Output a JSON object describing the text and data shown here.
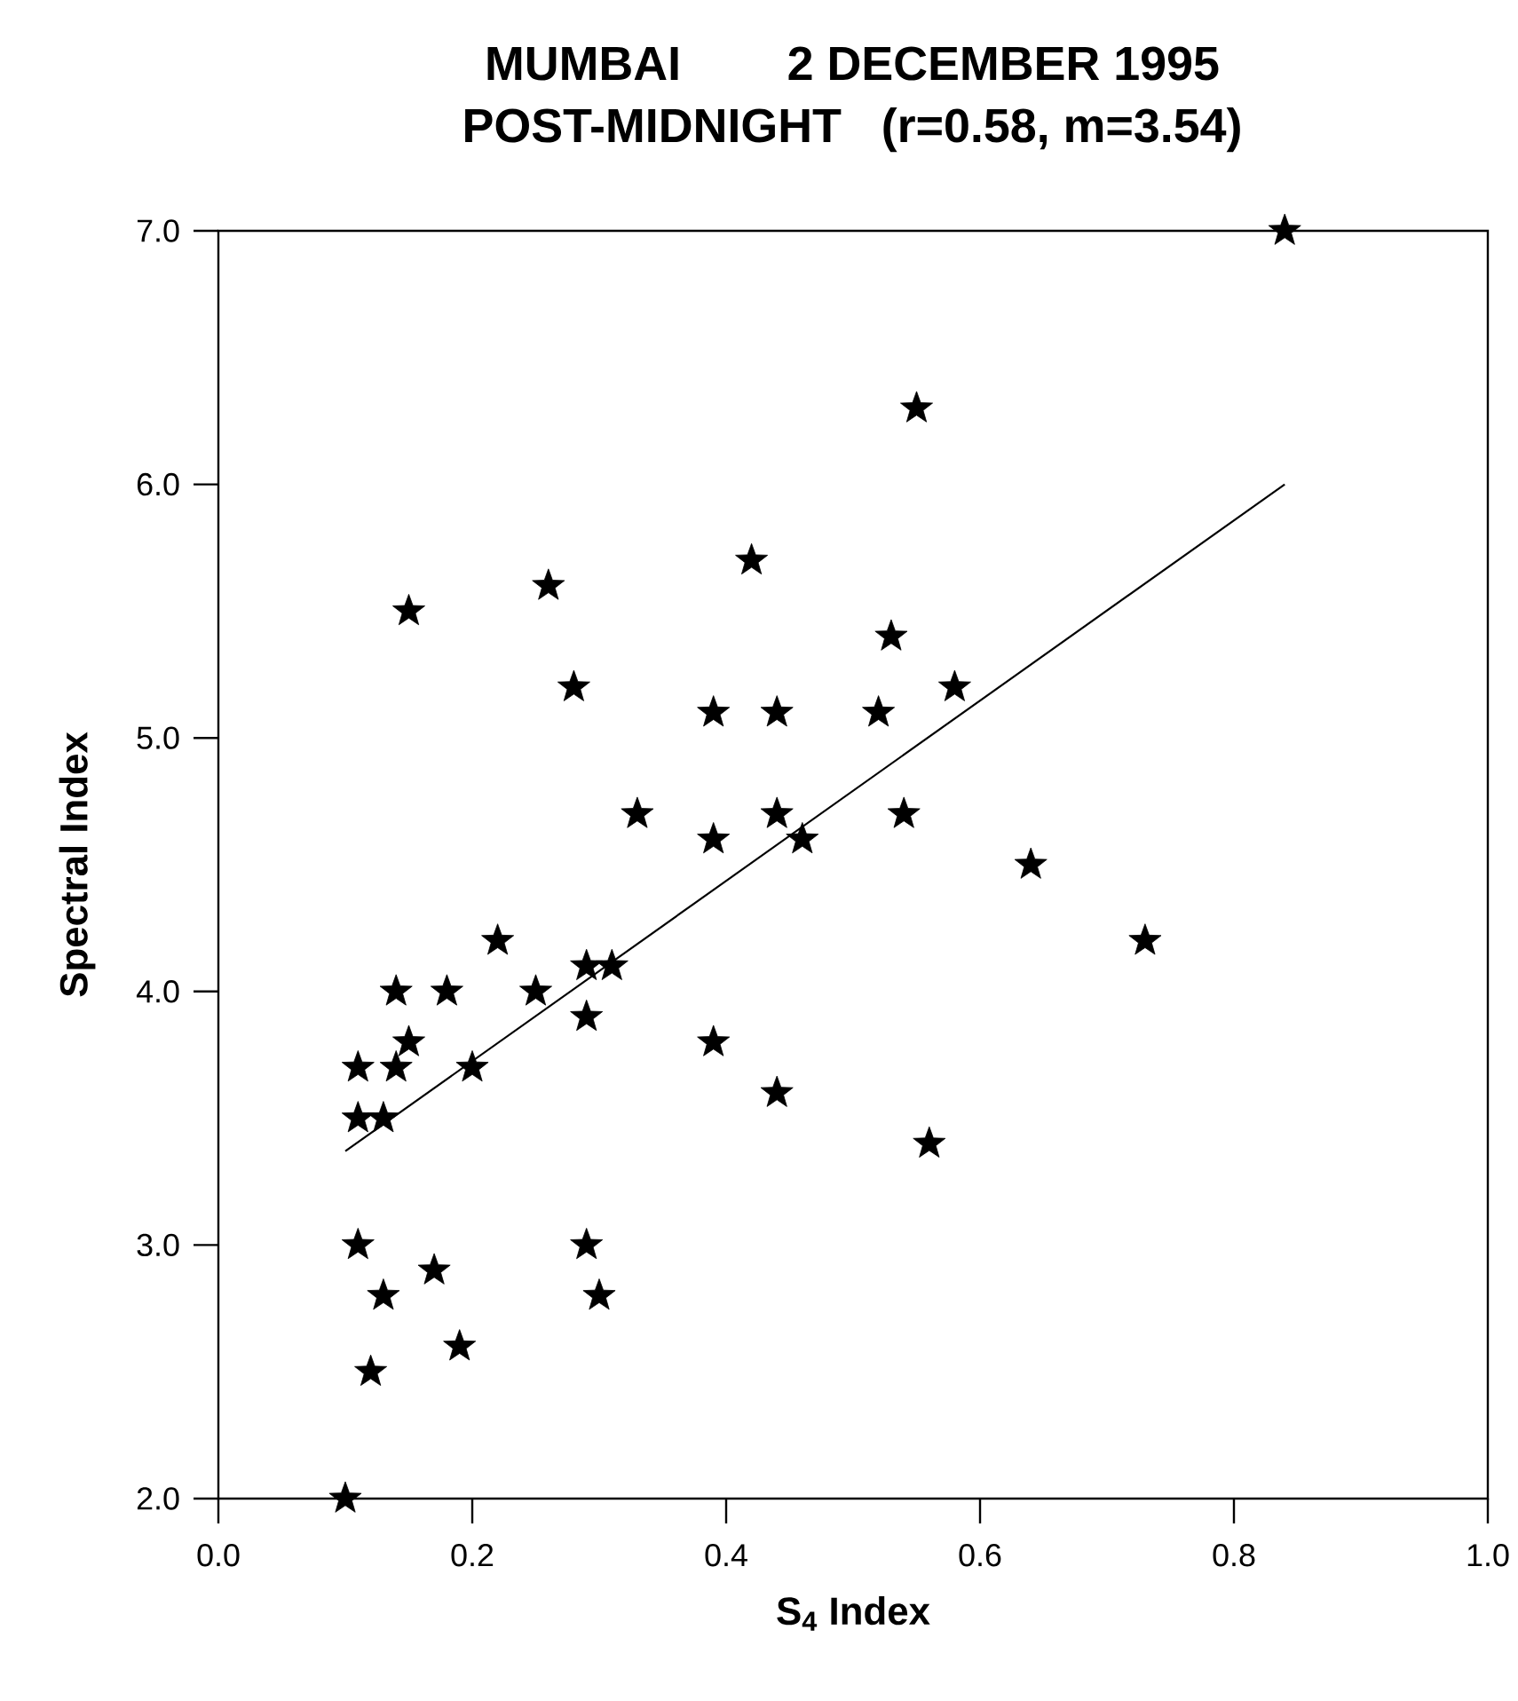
{
  "chart_data": {
    "type": "scatter",
    "title": "MUMBAI        2 DECEMBER 1995",
    "subtitle": "POST-MIDNIGHT   (r=0.58, m=3.54)",
    "xlabel": "S$_{4}$  Index",
    "ylabel": "Spectral  Index",
    "xlim": [
      0.0,
      1.0
    ],
    "ylim": [
      2.0,
      7.0
    ],
    "xticks": [
      {
        "value": 0.0,
        "label": "0.0"
      },
      0.2,
      0.4,
      0.6,
      0.8,
      {
        "value": 1.0,
        "label": "1.0"
      }
    ],
    "yticks": [
      {
        "value": 2.0,
        "label": "2.0"
      },
      {
        "value": 3.0,
        "label": "3.0"
      },
      {
        "value": 4.0,
        "label": "4.0"
      },
      {
        "value": 5.0,
        "label": "5.0"
      },
      {
        "value": 6.0,
        "label": "6.0"
      },
      {
        "value": 7.0,
        "label": "7.0"
      }
    ],
    "series": [
      {
        "marker": "star",
        "color": "#000000",
        "x": [
          0.84,
          0.55,
          0.26,
          0.42,
          0.15,
          0.53,
          0.28,
          0.58,
          0.39,
          0.44,
          0.52,
          0.33,
          0.44,
          0.54,
          0.39,
          0.46,
          0.64,
          0.73,
          0.22,
          0.29,
          0.31,
          0.14,
          0.18,
          0.25,
          0.29,
          0.15,
          0.39,
          0.11,
          0.14,
          0.2,
          0.44,
          0.11,
          0.13,
          0.56,
          0.11,
          0.29,
          0.17,
          0.13,
          0.3,
          0.19,
          0.12,
          0.1
        ],
        "values": [
          7.0,
          6.3,
          5.6,
          5.7,
          5.5,
          5.4,
          5.2,
          5.2,
          5.1,
          5.1,
          5.1,
          4.7,
          4.7,
          4.7,
          4.6,
          4.6,
          4.5,
          4.2,
          4.2,
          4.1,
          4.1,
          4.0,
          4.0,
          4.0,
          3.9,
          3.8,
          3.8,
          3.7,
          3.7,
          3.7,
          3.6,
          3.5,
          3.5,
          3.4,
          3.0,
          3.0,
          2.9,
          2.8,
          2.8,
          2.6,
          2.5,
          2.0
        ]
      },
      {
        "type": "line",
        "color": "#000000",
        "line_style": "solid",
        "x": [
          0.1,
          0.84
        ],
        "values": [
          3.37,
          6.0
        ]
      }
    ]
  }
}
